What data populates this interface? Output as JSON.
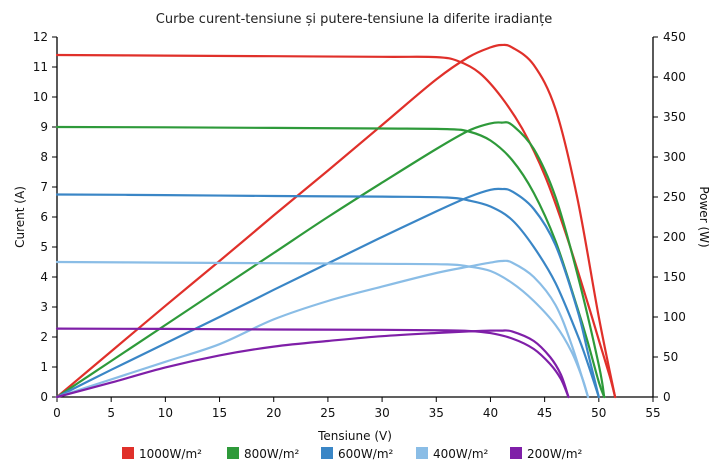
{
  "chart_data": {
    "type": "line",
    "title": "Curbe curent-tensiune și putere-tensiune la diferite iradianțe",
    "xlabel": "Tensiune (V)",
    "ylabel_left": "Curent (A)",
    "ylabel_right": "Power (W)",
    "xlim": [
      0,
      55
    ],
    "ylim_left": [
      0,
      12
    ],
    "ylim_right": [
      0,
      450
    ],
    "x_ticks": [
      0,
      5,
      10,
      15,
      20,
      25,
      30,
      35,
      40,
      45,
      50,
      55
    ],
    "y_left_ticks": [
      0,
      1,
      2,
      3,
      4,
      5,
      6,
      7,
      8,
      9,
      10,
      11,
      12
    ],
    "y_right_ticks": [
      0,
      50,
      100,
      150,
      200,
      250,
      300,
      350,
      400,
      450
    ],
    "grid": false,
    "legend_position": "bottom",
    "series": [
      {
        "name": "1000W/m²",
        "color": "#e0302a",
        "current": [
          [
            0,
            11.4
          ],
          [
            10,
            11.38
          ],
          [
            20,
            11.36
          ],
          [
            30,
            11.34
          ],
          [
            35,
            11.33
          ],
          [
            37,
            11.2
          ],
          [
            39,
            10.8
          ],
          [
            41,
            10.0
          ],
          [
            43,
            8.9
          ],
          [
            45,
            7.4
          ],
          [
            47,
            5.4
          ],
          [
            49,
            3.1
          ],
          [
            50,
            1.9
          ],
          [
            51,
            0.7
          ],
          [
            51.5,
            0
          ]
        ],
        "power": [
          [
            0,
            0
          ],
          [
            5,
            57
          ],
          [
            10,
            114
          ],
          [
            15,
            170
          ],
          [
            20,
            227
          ],
          [
            25,
            283
          ],
          [
            30,
            340
          ],
          [
            35,
            397
          ],
          [
            38,
            425
          ],
          [
            40,
            437
          ],
          [
            41,
            440
          ],
          [
            42,
            437
          ],
          [
            44,
            415
          ],
          [
            46,
            360
          ],
          [
            48,
            250
          ],
          [
            50,
            100
          ],
          [
            51.5,
            0
          ]
        ]
      },
      {
        "name": "800W/m²",
        "color": "#2e9a3a",
        "current": [
          [
            0,
            9.0
          ],
          [
            10,
            8.99
          ],
          [
            20,
            8.97
          ],
          [
            30,
            8.95
          ],
          [
            36,
            8.93
          ],
          [
            38,
            8.85
          ],
          [
            40,
            8.55
          ],
          [
            42,
            7.9
          ],
          [
            44,
            6.8
          ],
          [
            46,
            5.2
          ],
          [
            48,
            3.0
          ],
          [
            49,
            1.8
          ],
          [
            50,
            0.5
          ],
          [
            50.5,
            0
          ]
        ],
        "power": [
          [
            0,
            0
          ],
          [
            5,
            45
          ],
          [
            10,
            90
          ],
          [
            15,
            135
          ],
          [
            20,
            180
          ],
          [
            25,
            225
          ],
          [
            30,
            268
          ],
          [
            35,
            310
          ],
          [
            38,
            333
          ],
          [
            40,
            342
          ],
          [
            41,
            343
          ],
          [
            42,
            340
          ],
          [
            44,
            310
          ],
          [
            46,
            250
          ],
          [
            48,
            155
          ],
          [
            50,
            40
          ],
          [
            50.5,
            0
          ]
        ]
      },
      {
        "name": "600W/m²",
        "color": "#3a86c6",
        "current": [
          [
            0,
            6.75
          ],
          [
            10,
            6.73
          ],
          [
            20,
            6.7
          ],
          [
            30,
            6.68
          ],
          [
            36,
            6.65
          ],
          [
            38,
            6.55
          ],
          [
            40,
            6.35
          ],
          [
            42,
            5.9
          ],
          [
            44,
            5.0
          ],
          [
            46,
            3.8
          ],
          [
            48,
            2.1
          ],
          [
            49,
            1.1
          ],
          [
            50,
            0
          ]
        ],
        "power": [
          [
            0,
            0
          ],
          [
            5,
            34
          ],
          [
            10,
            67
          ],
          [
            15,
            100
          ],
          [
            20,
            134
          ],
          [
            25,
            167
          ],
          [
            30,
            200
          ],
          [
            35,
            232
          ],
          [
            38,
            250
          ],
          [
            40,
            259
          ],
          [
            41,
            260
          ],
          [
            42,
            257
          ],
          [
            44,
            235
          ],
          [
            46,
            190
          ],
          [
            48,
            110
          ],
          [
            49,
            55
          ],
          [
            50,
            0
          ]
        ]
      },
      {
        "name": "400W/m²",
        "color": "#8abde6",
        "current": [
          [
            0,
            4.5
          ],
          [
            10,
            4.48
          ],
          [
            20,
            4.46
          ],
          [
            30,
            4.44
          ],
          [
            36,
            4.42
          ],
          [
            38,
            4.35
          ],
          [
            40,
            4.2
          ],
          [
            42,
            3.8
          ],
          [
            44,
            3.2
          ],
          [
            46,
            2.4
          ],
          [
            47.5,
            1.5
          ],
          [
            48.5,
            0.6
          ],
          [
            49,
            0
          ]
        ],
        "power": [
          [
            0,
            0
          ],
          [
            5,
            22
          ],
          [
            10,
            44
          ],
          [
            15,
            66
          ],
          [
            20,
            97
          ],
          [
            25,
            120
          ],
          [
            30,
            138
          ],
          [
            35,
            155
          ],
          [
            38,
            163
          ],
          [
            40,
            168
          ],
          [
            41,
            170
          ],
          [
            42,
            168
          ],
          [
            44,
            150
          ],
          [
            46,
            115
          ],
          [
            47.5,
            65
          ],
          [
            49,
            0
          ]
        ]
      },
      {
        "name": "200W/m²",
        "color": "#7f1fa8",
        "current": [
          [
            0,
            2.28
          ],
          [
            10,
            2.27
          ],
          [
            20,
            2.25
          ],
          [
            30,
            2.24
          ],
          [
            36,
            2.22
          ],
          [
            38,
            2.2
          ],
          [
            40,
            2.13
          ],
          [
            42,
            1.95
          ],
          [
            44,
            1.6
          ],
          [
            45.5,
            1.1
          ],
          [
            46.5,
            0.6
          ],
          [
            47.2,
            0
          ]
        ],
        "power": [
          [
            0,
            0
          ],
          [
            5,
            18
          ],
          [
            10,
            37
          ],
          [
            15,
            52
          ],
          [
            20,
            63
          ],
          [
            25,
            70
          ],
          [
            30,
            76
          ],
          [
            35,
            80
          ],
          [
            38,
            82
          ],
          [
            40,
            83
          ],
          [
            41,
            83
          ],
          [
            42,
            82
          ],
          [
            44,
            70
          ],
          [
            45.5,
            50
          ],
          [
            46.5,
            28
          ],
          [
            47.2,
            0
          ]
        ]
      }
    ]
  }
}
